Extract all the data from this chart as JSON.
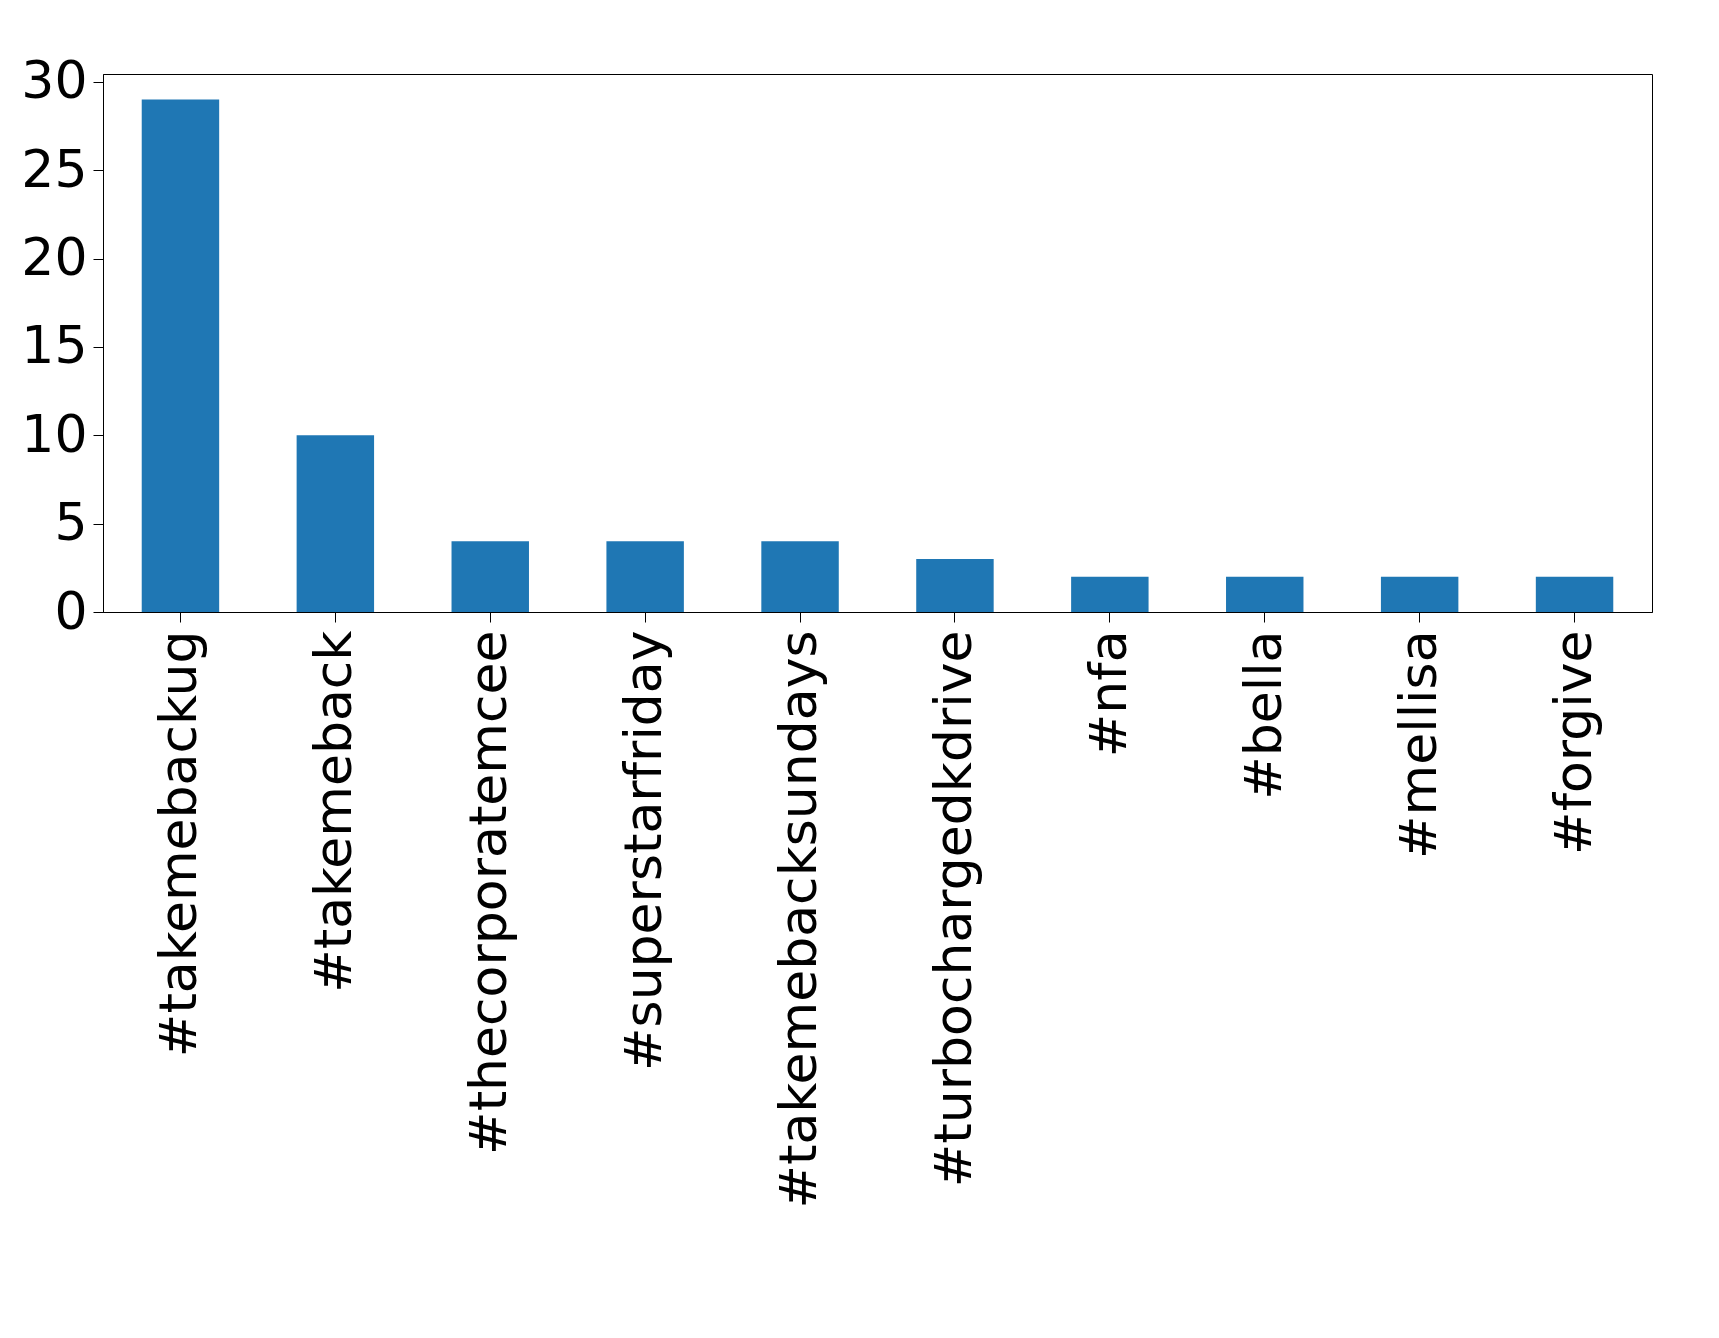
{
  "chart_data": {
    "type": "bar",
    "categories": [
      "#takemebackug",
      "#takemeback",
      "#thecorporatemcee",
      "#superstarfriday",
      "#takemebacksundays",
      "#turbochargedkdrive",
      "#nfa",
      "#bella",
      "#mellisa",
      "#forgive"
    ],
    "values": [
      29,
      10,
      4,
      4,
      4,
      3,
      2,
      2,
      2,
      2
    ],
    "color": "#1f77b4",
    "ylim": [
      0,
      30.45
    ],
    "yticks": [
      0,
      5,
      10,
      15,
      20,
      25,
      30
    ],
    "grid": false
  }
}
